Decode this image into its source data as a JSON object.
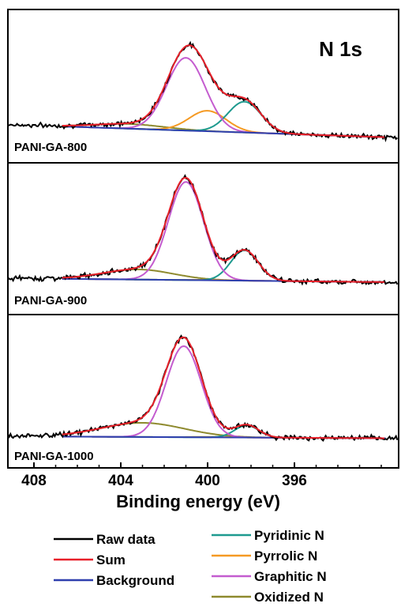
{
  "chart_data": {
    "type": "line",
    "title": "N 1s",
    "xlabel": "Binding energy (eV)",
    "ylabel": "",
    "xlim": [
      409.2,
      391.2
    ],
    "x_reversed": true,
    "x_ticks": [
      408,
      404,
      400,
      396
    ],
    "x_tick_labels": [
      "408",
      "404",
      "400",
      "396"
    ],
    "grid": false,
    "legend": {
      "position": "bottom",
      "entries": [
        {
          "name": "Raw data",
          "color": "#000000"
        },
        {
          "name": "Sum",
          "color": "#e8202a"
        },
        {
          "name": "Background",
          "color": "#2e3fae"
        },
        {
          "name": "Pyridinic N",
          "color": "#1e9a8f"
        },
        {
          "name": "Pyrrolic N",
          "color": "#f59a23"
        },
        {
          "name": "Graphitic N",
          "color": "#c45ccf"
        },
        {
          "name": "Oxidized N",
          "color": "#8e8a2e"
        }
      ]
    },
    "panels": [
      {
        "label": "PANI-GA-800",
        "components": [
          {
            "name": "Graphitic N",
            "center_eV": 401.0,
            "fwhm_eV": 2.1,
            "height": 0.78
          },
          {
            "name": "Pyrrolic N",
            "center_eV": 400.0,
            "fwhm_eV": 2.0,
            "height": 0.22
          },
          {
            "name": "Pyridinic N",
            "center_eV": 398.3,
            "fwhm_eV": 1.8,
            "height": 0.33
          },
          {
            "name": "Oxidized N",
            "center_eV": 403.6,
            "fwhm_eV": 3.8,
            "height": 0.05
          }
        ],
        "background": {
          "left": 0.02,
          "right": -0.12
        }
      },
      {
        "label": "PANI-GA-900",
        "components": [
          {
            "name": "Graphitic N",
            "center_eV": 401.0,
            "fwhm_eV": 1.9,
            "height": 0.97
          },
          {
            "name": "Pyrrolic N",
            "center_eV": 400.0,
            "fwhm_eV": 1.6,
            "height": 0.005
          },
          {
            "name": "Pyridinic N",
            "center_eV": 398.3,
            "fwhm_eV": 1.5,
            "height": 0.3
          },
          {
            "name": "Oxidized N",
            "center_eV": 403.2,
            "fwhm_eV": 3.8,
            "height": 0.1
          }
        ],
        "background": {
          "left": 0.0,
          "right": -0.04
        }
      },
      {
        "label": "PANI-GA-1000",
        "components": [
          {
            "name": "Graphitic N",
            "center_eV": 401.1,
            "fwhm_eV": 1.9,
            "height": 0.9
          },
          {
            "name": "Pyrrolic N",
            "center_eV": 400.0,
            "fwhm_eV": 1.6,
            "height": 0.005
          },
          {
            "name": "Pyridinic N",
            "center_eV": 398.2,
            "fwhm_eV": 1.3,
            "height": 0.12
          },
          {
            "name": "Oxidized N",
            "center_eV": 403.0,
            "fwhm_eV": 4.5,
            "height": 0.14
          }
        ],
        "background": {
          "left": 0.0,
          "right": -0.02
        }
      }
    ]
  }
}
